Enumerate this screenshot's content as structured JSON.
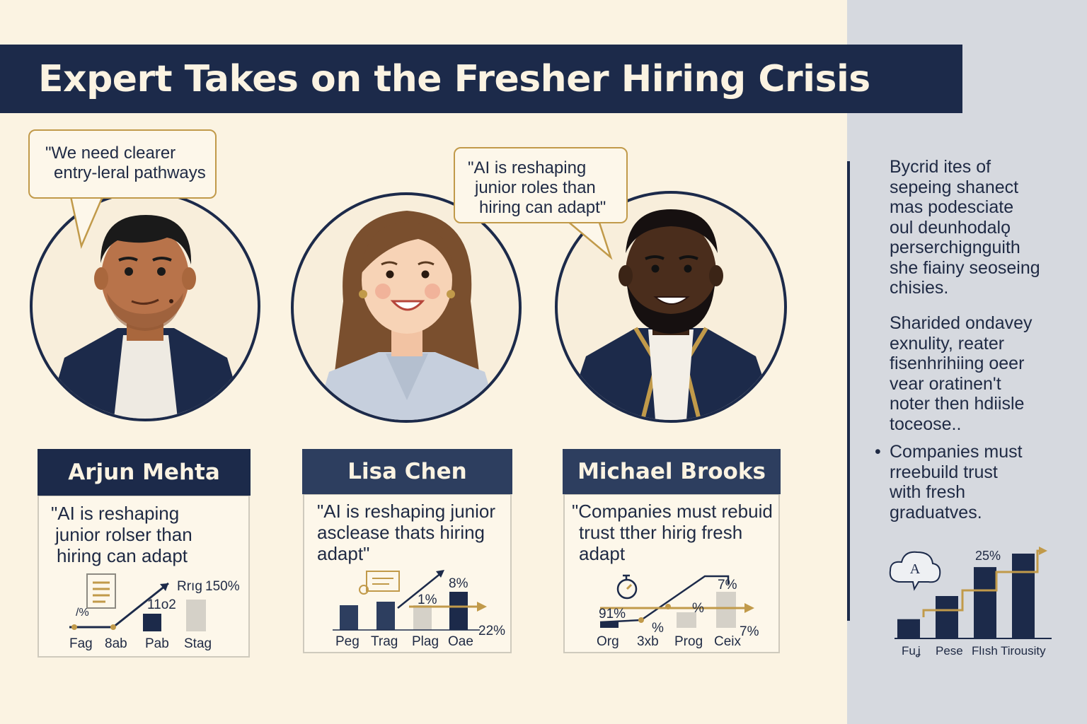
{
  "title": "Expert Takes on the Fresher Hiring Crisis",
  "colors": {
    "navy": "#1c2a4a",
    "gold": "#c19a4a",
    "cream": "#fbf3e2",
    "sidebar": "#d6d9df",
    "gray_bar": "#d5d1c8"
  },
  "speech_bubbles": {
    "left": [
      "\"We need clearer",
      "entry-leral pathways"
    ],
    "center": [
      "\"AI is reshaping",
      "junior roles than",
      "hiring can adapt\""
    ]
  },
  "experts": [
    {
      "name": "Arjun Mehta",
      "quote": [
        "\"AI is reshaping",
        "junior rolser than",
        "hiring can adapt"
      ],
      "chart": {
        "labels": [
          "Fag",
          "8ab",
          "Pab",
          "Stag"
        ],
        "annotations": [
          "/%",
          "11o2",
          "Rrıg",
          "150%"
        ]
      }
    },
    {
      "name": "Lisa Chen",
      "quote": [
        "\"AI is reshaping junior",
        "asclease thats hiring",
        "adapt\""
      ],
      "chart": {
        "labels": [
          "Peg",
          "Trag",
          "Plag",
          "Oae"
        ],
        "annotations": [
          "1%",
          "8%",
          "22%"
        ]
      }
    },
    {
      "name": "Michael Brooks",
      "quote": [
        "\"Companies must rebuid",
        "trust tther hirig fresh",
        "adapt"
      ],
      "chart": {
        "labels": [
          "Org",
          "3xb",
          "Prog",
          "Ceix"
        ],
        "annotations": [
          "91%",
          "%",
          "%",
          "7%",
          "7%"
        ]
      }
    }
  ],
  "sidebar": {
    "para1": [
      "Bycrid ites of",
      "sepeing shanect",
      "mas podesciate",
      "oul deunhodalǫ",
      "perserchignguith",
      "she fiainy seoseing",
      "chisies."
    ],
    "para2": [
      "Sharided ondavey",
      "exnulity, reater",
      "fisenhrihiing oeer",
      "vear oratinen't",
      "noter then hdiisle",
      "toceose.."
    ],
    "bullet_mark": "•",
    "bullet": [
      "Companies must",
      "rreebuild trust",
      "with fresh",
      "graduatves."
    ],
    "chart": {
      "labels": [
        "Fuʝ",
        "Pese",
        "Flısh",
        "Tirousity"
      ],
      "annotation": "25%",
      "cloud_letter": "A",
      "values": [
        1,
        2.2,
        3.7,
        4.4
      ]
    }
  }
}
